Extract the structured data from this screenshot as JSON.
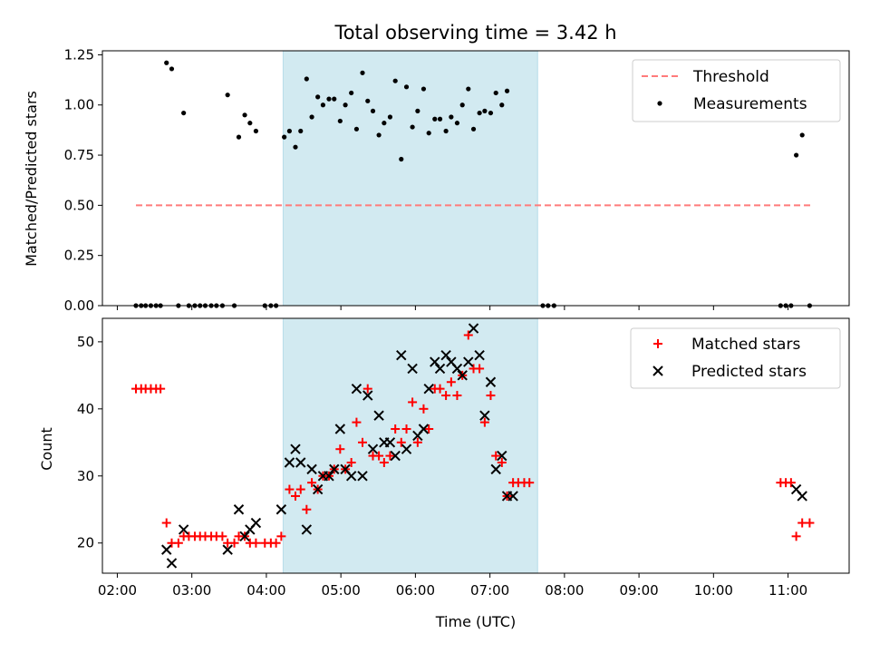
{
  "chart_data": {
    "title": "Total observing time = 3.42 h",
    "xlabel": "Time (UTC)",
    "x_ticks": [
      "02:00",
      "03:00",
      "04:00",
      "05:00",
      "06:00",
      "07:00",
      "08:00",
      "09:00",
      "10:00",
      "11:00"
    ],
    "xlim": [
      1.8,
      11.82
    ],
    "observing_window": [
      4.225,
      7.64
    ],
    "colors": {
      "window": "#add8e6",
      "threshold": "#ff7b7b",
      "measurements": "#000000",
      "matched": "#ff0000",
      "predicted": "#000000"
    },
    "top": {
      "type": "scatter",
      "ylabel": "Matched/Predicted stars",
      "ylim": [
        0,
        1.27
      ],
      "y_ticks": [
        0.0,
        0.25,
        0.5,
        0.75,
        1.0,
        1.25
      ],
      "y_tick_labels": [
        "0.00",
        "0.25",
        "0.50",
        "0.75",
        "1.00",
        "1.25"
      ],
      "legend_position": "top-right",
      "threshold": {
        "name": "Threshold",
        "y": 0.5,
        "x_range": [
          2.25,
          11.3
        ]
      },
      "measurements": {
        "name": "Measurements",
        "points": [
          [
            2.25,
            0
          ],
          [
            2.32,
            0
          ],
          [
            2.38,
            0
          ],
          [
            2.45,
            0
          ],
          [
            2.52,
            0
          ],
          [
            2.58,
            0
          ],
          [
            2.66,
            1.21
          ],
          [
            2.73,
            1.18
          ],
          [
            2.82,
            0
          ],
          [
            2.89,
            0.96
          ],
          [
            2.96,
            0
          ],
          [
            3.04,
            0
          ],
          [
            3.11,
            0
          ],
          [
            3.18,
            0
          ],
          [
            3.26,
            0
          ],
          [
            3.33,
            0
          ],
          [
            3.41,
            0
          ],
          [
            3.48,
            1.05
          ],
          [
            3.57,
            0
          ],
          [
            3.63,
            0.84
          ],
          [
            3.71,
            0.95
          ],
          [
            3.78,
            0.91
          ],
          [
            3.86,
            0.87
          ],
          [
            3.98,
            0
          ],
          [
            4.06,
            0
          ],
          [
            4.13,
            0
          ],
          [
            4.24,
            0.84
          ],
          [
            4.31,
            0.87
          ],
          [
            4.39,
            0.79
          ],
          [
            4.46,
            0.87
          ],
          [
            4.54,
            1.13
          ],
          [
            4.61,
            0.94
          ],
          [
            4.69,
            1.04
          ],
          [
            4.76,
            1.0
          ],
          [
            4.84,
            1.03
          ],
          [
            4.91,
            1.03
          ],
          [
            4.99,
            0.92
          ],
          [
            5.06,
            1.0
          ],
          [
            5.14,
            1.06
          ],
          [
            5.21,
            0.88
          ],
          [
            5.29,
            1.16
          ],
          [
            5.36,
            1.02
          ],
          [
            5.43,
            0.97
          ],
          [
            5.51,
            0.85
          ],
          [
            5.58,
            0.91
          ],
          [
            5.66,
            0.94
          ],
          [
            5.73,
            1.12
          ],
          [
            5.81,
            0.73
          ],
          [
            5.88,
            1.09
          ],
          [
            5.96,
            0.89
          ],
          [
            6.03,
            0.97
          ],
          [
            6.11,
            1.08
          ],
          [
            6.18,
            0.86
          ],
          [
            6.26,
            0.93
          ],
          [
            6.33,
            0.93
          ],
          [
            6.41,
            0.87
          ],
          [
            6.48,
            0.94
          ],
          [
            6.56,
            0.91
          ],
          [
            6.63,
            1.0
          ],
          [
            6.71,
            1.08
          ],
          [
            6.78,
            0.88
          ],
          [
            6.86,
            0.96
          ],
          [
            6.93,
            0.97
          ],
          [
            7.01,
            0.96
          ],
          [
            7.08,
            1.06
          ],
          [
            7.16,
            1.0
          ],
          [
            7.23,
            1.07
          ],
          [
            7.71,
            0
          ],
          [
            7.78,
            0
          ],
          [
            7.86,
            0
          ],
          [
            10.9,
            0
          ],
          [
            10.97,
            0
          ],
          [
            11.04,
            0
          ],
          [
            11.11,
            0.75
          ],
          [
            11.19,
            0.85
          ],
          [
            11.29,
            0
          ]
        ]
      }
    },
    "bottom": {
      "type": "scatter",
      "ylabel": "Count",
      "ylim": [
        15.5,
        53.5
      ],
      "y_ticks": [
        20,
        30,
        40,
        50
      ],
      "y_tick_labels": [
        "20",
        "30",
        "40",
        "50"
      ],
      "legend_position": "top-right",
      "series": [
        {
          "name": "Matched stars",
          "marker": "plus",
          "points": [
            [
              2.25,
              43
            ],
            [
              2.32,
              43
            ],
            [
              2.38,
              43
            ],
            [
              2.45,
              43
            ],
            [
              2.52,
              43
            ],
            [
              2.58,
              43
            ],
            [
              2.66,
              23
            ],
            [
              2.73,
              20
            ],
            [
              2.82,
              20
            ],
            [
              2.89,
              21
            ],
            [
              2.96,
              21
            ],
            [
              3.04,
              21
            ],
            [
              3.11,
              21
            ],
            [
              3.18,
              21
            ],
            [
              3.26,
              21
            ],
            [
              3.33,
              21
            ],
            [
              3.41,
              21
            ],
            [
              3.48,
              20
            ],
            [
              3.57,
              20
            ],
            [
              3.63,
              21
            ],
            [
              3.71,
              21
            ],
            [
              3.78,
              20
            ],
            [
              3.86,
              20
            ],
            [
              3.98,
              20
            ],
            [
              4.06,
              20
            ],
            [
              4.13,
              20
            ],
            [
              4.2,
              21
            ],
            [
              4.31,
              28
            ],
            [
              4.39,
              27
            ],
            [
              4.46,
              28
            ],
            [
              4.54,
              25
            ],
            [
              4.61,
              29
            ],
            [
              4.69,
              28
            ],
            [
              4.76,
              30
            ],
            [
              4.84,
              30
            ],
            [
              4.91,
              31
            ],
            [
              4.99,
              34
            ],
            [
              5.06,
              31
            ],
            [
              5.14,
              32
            ],
            [
              5.21,
              38
            ],
            [
              5.29,
              35
            ],
            [
              5.36,
              43
            ],
            [
              5.43,
              33
            ],
            [
              5.51,
              33
            ],
            [
              5.58,
              32
            ],
            [
              5.66,
              33
            ],
            [
              5.73,
              37
            ],
            [
              5.81,
              35
            ],
            [
              5.88,
              37
            ],
            [
              5.96,
              41
            ],
            [
              6.03,
              35
            ],
            [
              6.11,
              40
            ],
            [
              6.18,
              37
            ],
            [
              6.26,
              43
            ],
            [
              6.33,
              43
            ],
            [
              6.41,
              42
            ],
            [
              6.48,
              44
            ],
            [
              6.56,
              42
            ],
            [
              6.63,
              45
            ],
            [
              6.71,
              51
            ],
            [
              6.78,
              46
            ],
            [
              6.86,
              46
            ],
            [
              6.93,
              38
            ],
            [
              7.01,
              42
            ],
            [
              7.08,
              33
            ],
            [
              7.16,
              32
            ],
            [
              7.23,
              27
            ],
            [
              7.31,
              29
            ],
            [
              7.38,
              29
            ],
            [
              7.46,
              29
            ],
            [
              7.53,
              29
            ],
            [
              10.9,
              29
            ],
            [
              10.97,
              29
            ],
            [
              11.04,
              29
            ],
            [
              11.11,
              21
            ],
            [
              11.19,
              23
            ],
            [
              11.29,
              23
            ]
          ]
        },
        {
          "name": "Predicted stars",
          "marker": "x",
          "points": [
            [
              2.66,
              19
            ],
            [
              2.73,
              17
            ],
            [
              2.89,
              22
            ],
            [
              3.48,
              19
            ],
            [
              3.63,
              25
            ],
            [
              3.71,
              21
            ],
            [
              3.78,
              22
            ],
            [
              3.86,
              23
            ],
            [
              4.2,
              25
            ],
            [
              4.31,
              32
            ],
            [
              4.39,
              34
            ],
            [
              4.46,
              32
            ],
            [
              4.54,
              22
            ],
            [
              4.61,
              31
            ],
            [
              4.69,
              28
            ],
            [
              4.76,
              30
            ],
            [
              4.84,
              30
            ],
            [
              4.91,
              31
            ],
            [
              4.99,
              37
            ],
            [
              5.06,
              31
            ],
            [
              5.14,
              30
            ],
            [
              5.21,
              43
            ],
            [
              5.29,
              30
            ],
            [
              5.36,
              42
            ],
            [
              5.43,
              34
            ],
            [
              5.51,
              39
            ],
            [
              5.58,
              35
            ],
            [
              5.66,
              35
            ],
            [
              5.73,
              33
            ],
            [
              5.81,
              48
            ],
            [
              5.88,
              34
            ],
            [
              5.96,
              46
            ],
            [
              6.03,
              36
            ],
            [
              6.11,
              37
            ],
            [
              6.18,
              43
            ],
            [
              6.26,
              47
            ],
            [
              6.33,
              46
            ],
            [
              6.41,
              48
            ],
            [
              6.48,
              47
            ],
            [
              6.56,
              46
            ],
            [
              6.63,
              45
            ],
            [
              6.71,
              47
            ],
            [
              6.78,
              52
            ],
            [
              6.86,
              48
            ],
            [
              6.93,
              39
            ],
            [
              7.01,
              44
            ],
            [
              7.08,
              31
            ],
            [
              7.16,
              33
            ],
            [
              7.23,
              27
            ],
            [
              7.31,
              27
            ],
            [
              11.11,
              28
            ],
            [
              11.19,
              27
            ]
          ]
        }
      ]
    }
  }
}
